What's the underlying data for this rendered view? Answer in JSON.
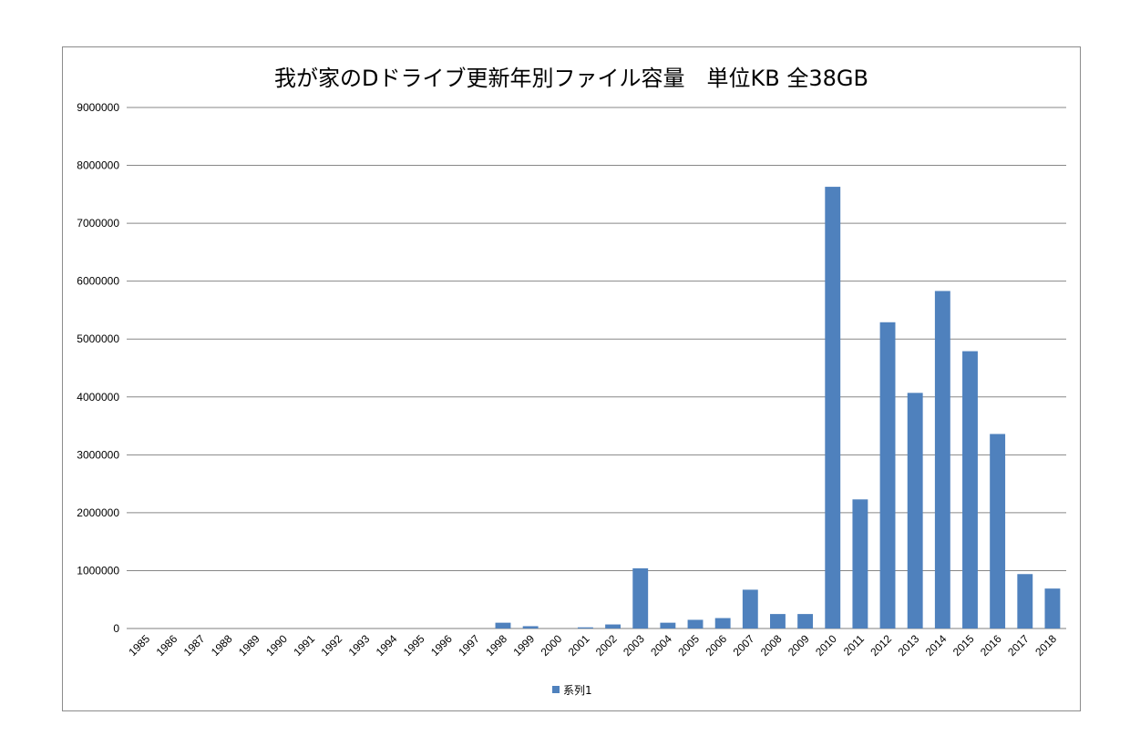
{
  "chart_data": {
    "type": "bar",
    "title": "我が家のDドライブ更新年別ファイル容量　単位KB 全38GB",
    "xlabel": "",
    "ylabel": "",
    "ylim": [
      0,
      9000000
    ],
    "yticks": [
      0,
      1000000,
      2000000,
      3000000,
      4000000,
      5000000,
      6000000,
      7000000,
      8000000,
      9000000
    ],
    "grid": true,
    "legend_position": "bottom",
    "bar_color": "#4f81bd",
    "categories": [
      "1985",
      "1986",
      "1987",
      "1988",
      "1989",
      "1990",
      "1991",
      "1992",
      "1993",
      "1994",
      "1995",
      "1996",
      "1997",
      "1998",
      "1999",
      "2000",
      "2001",
      "2002",
      "2003",
      "2004",
      "2005",
      "2006",
      "2007",
      "2008",
      "2009",
      "2010",
      "2011",
      "2012",
      "2013",
      "2014",
      "2015",
      "2016",
      "2017",
      "2018"
    ],
    "series": [
      {
        "name": "系列1",
        "values": [
          0,
          0,
          0,
          0,
          0,
          0,
          0,
          0,
          0,
          0,
          0,
          0,
          0,
          100000,
          40000,
          0,
          20000,
          70000,
          1040000,
          100000,
          150000,
          180000,
          670000,
          250000,
          250000,
          7630000,
          2230000,
          5290000,
          4070000,
          5830000,
          4790000,
          3360000,
          940000,
          690000
        ]
      }
    ]
  }
}
